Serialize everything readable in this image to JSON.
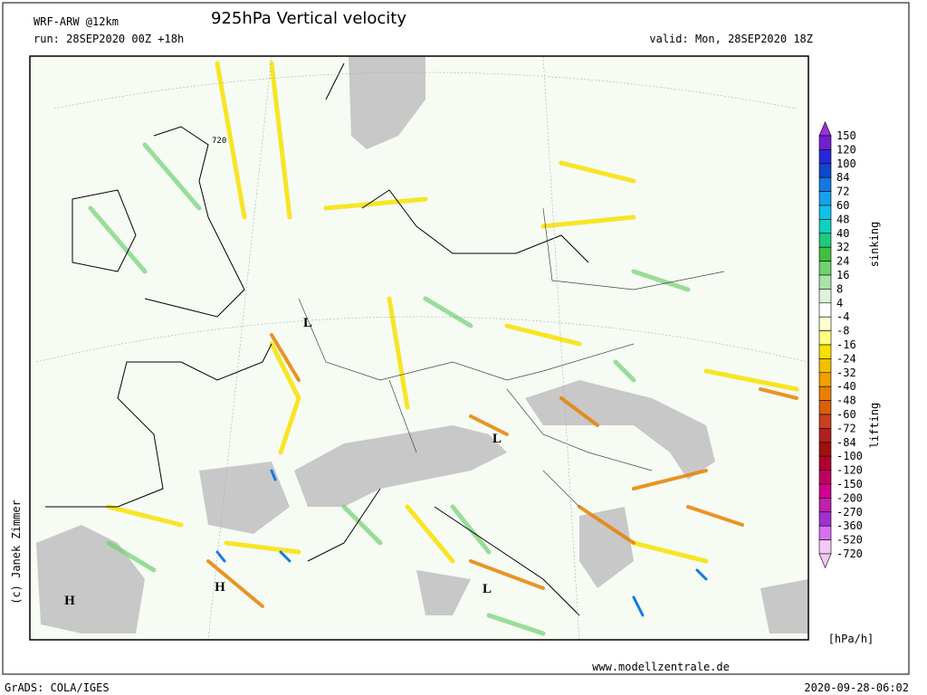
{
  "header": {
    "model": "WRF-ARW @12km",
    "title": "925hPa Vertical velocity",
    "run": "run: 28SEP2020 00Z +18h",
    "valid": "valid: Mon, 28SEP2020 18Z"
  },
  "map": {
    "contour_label": "720",
    "pressure_centers": [
      "L",
      "L",
      "L",
      "H",
      "H"
    ],
    "credit": "(c) Janek Zimmer"
  },
  "colorbar": {
    "levels": [
      150,
      120,
      100,
      84,
      72,
      60,
      48,
      40,
      32,
      24,
      16,
      8,
      4,
      -4,
      -8,
      -16,
      -24,
      -32,
      -40,
      -48,
      -60,
      -72,
      -84,
      -100,
      -120,
      -150,
      -200,
      -270,
      -360,
      -520,
      -720
    ],
    "colors": [
      "#9a30d8",
      "#7020d0",
      "#2828d8",
      "#1048c8",
      "#1478e0",
      "#18a0e8",
      "#10c0e8",
      "#10d0c0",
      "#20c880",
      "#40c040",
      "#70d070",
      "#a8e4a8",
      "#dcf4dc",
      "#ffffff",
      "#ffffd0",
      "#ffff80",
      "#f8e000",
      "#f0c000",
      "#f0a000",
      "#e88000",
      "#d86000",
      "#c84020",
      "#b02020",
      "#a01010",
      "#b00030",
      "#c00060",
      "#d00090",
      "#c020b0",
      "#a030d0",
      "#d870f0",
      "#f4c8f4"
    ],
    "upper_label": "sinking",
    "lower_label": "lifting",
    "unit": "[hPa/h]"
  },
  "footer": {
    "url": "www.modellzentrale.de",
    "software": "GrADS: COLA/IGES",
    "timestamp": "2020-09-28-06:02"
  }
}
